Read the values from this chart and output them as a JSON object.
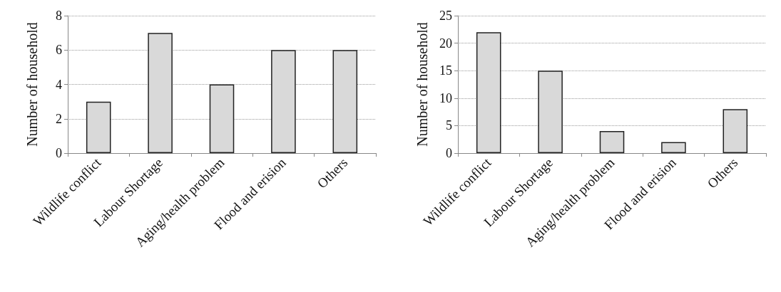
{
  "chart_data": [
    {
      "type": "bar",
      "ylabel": "Number of household",
      "categories": [
        "Wildlife conflict",
        "Labour Shortage",
        "Aging/health problem",
        "Flood and erision",
        "Others"
      ],
      "values": [
        3,
        7,
        4,
        6,
        6
      ],
      "color": "#d9d9d9",
      "ylim": [
        0,
        8
      ],
      "yticks": [
        0,
        2,
        4,
        6,
        8
      ],
      "grid": "y"
    },
    {
      "type": "bar",
      "ylabel": "Number of household",
      "categories": [
        "Wildlife conflict",
        "Labour Shortage",
        "Aging/health problem",
        "Flood and erision",
        "Others"
      ],
      "values": [
        22,
        15,
        4,
        2,
        8
      ],
      "color": "#d9d9d9",
      "ylim": [
        0,
        25
      ],
      "yticks": [
        0,
        5,
        10,
        15,
        20,
        25
      ],
      "grid": "y"
    }
  ]
}
